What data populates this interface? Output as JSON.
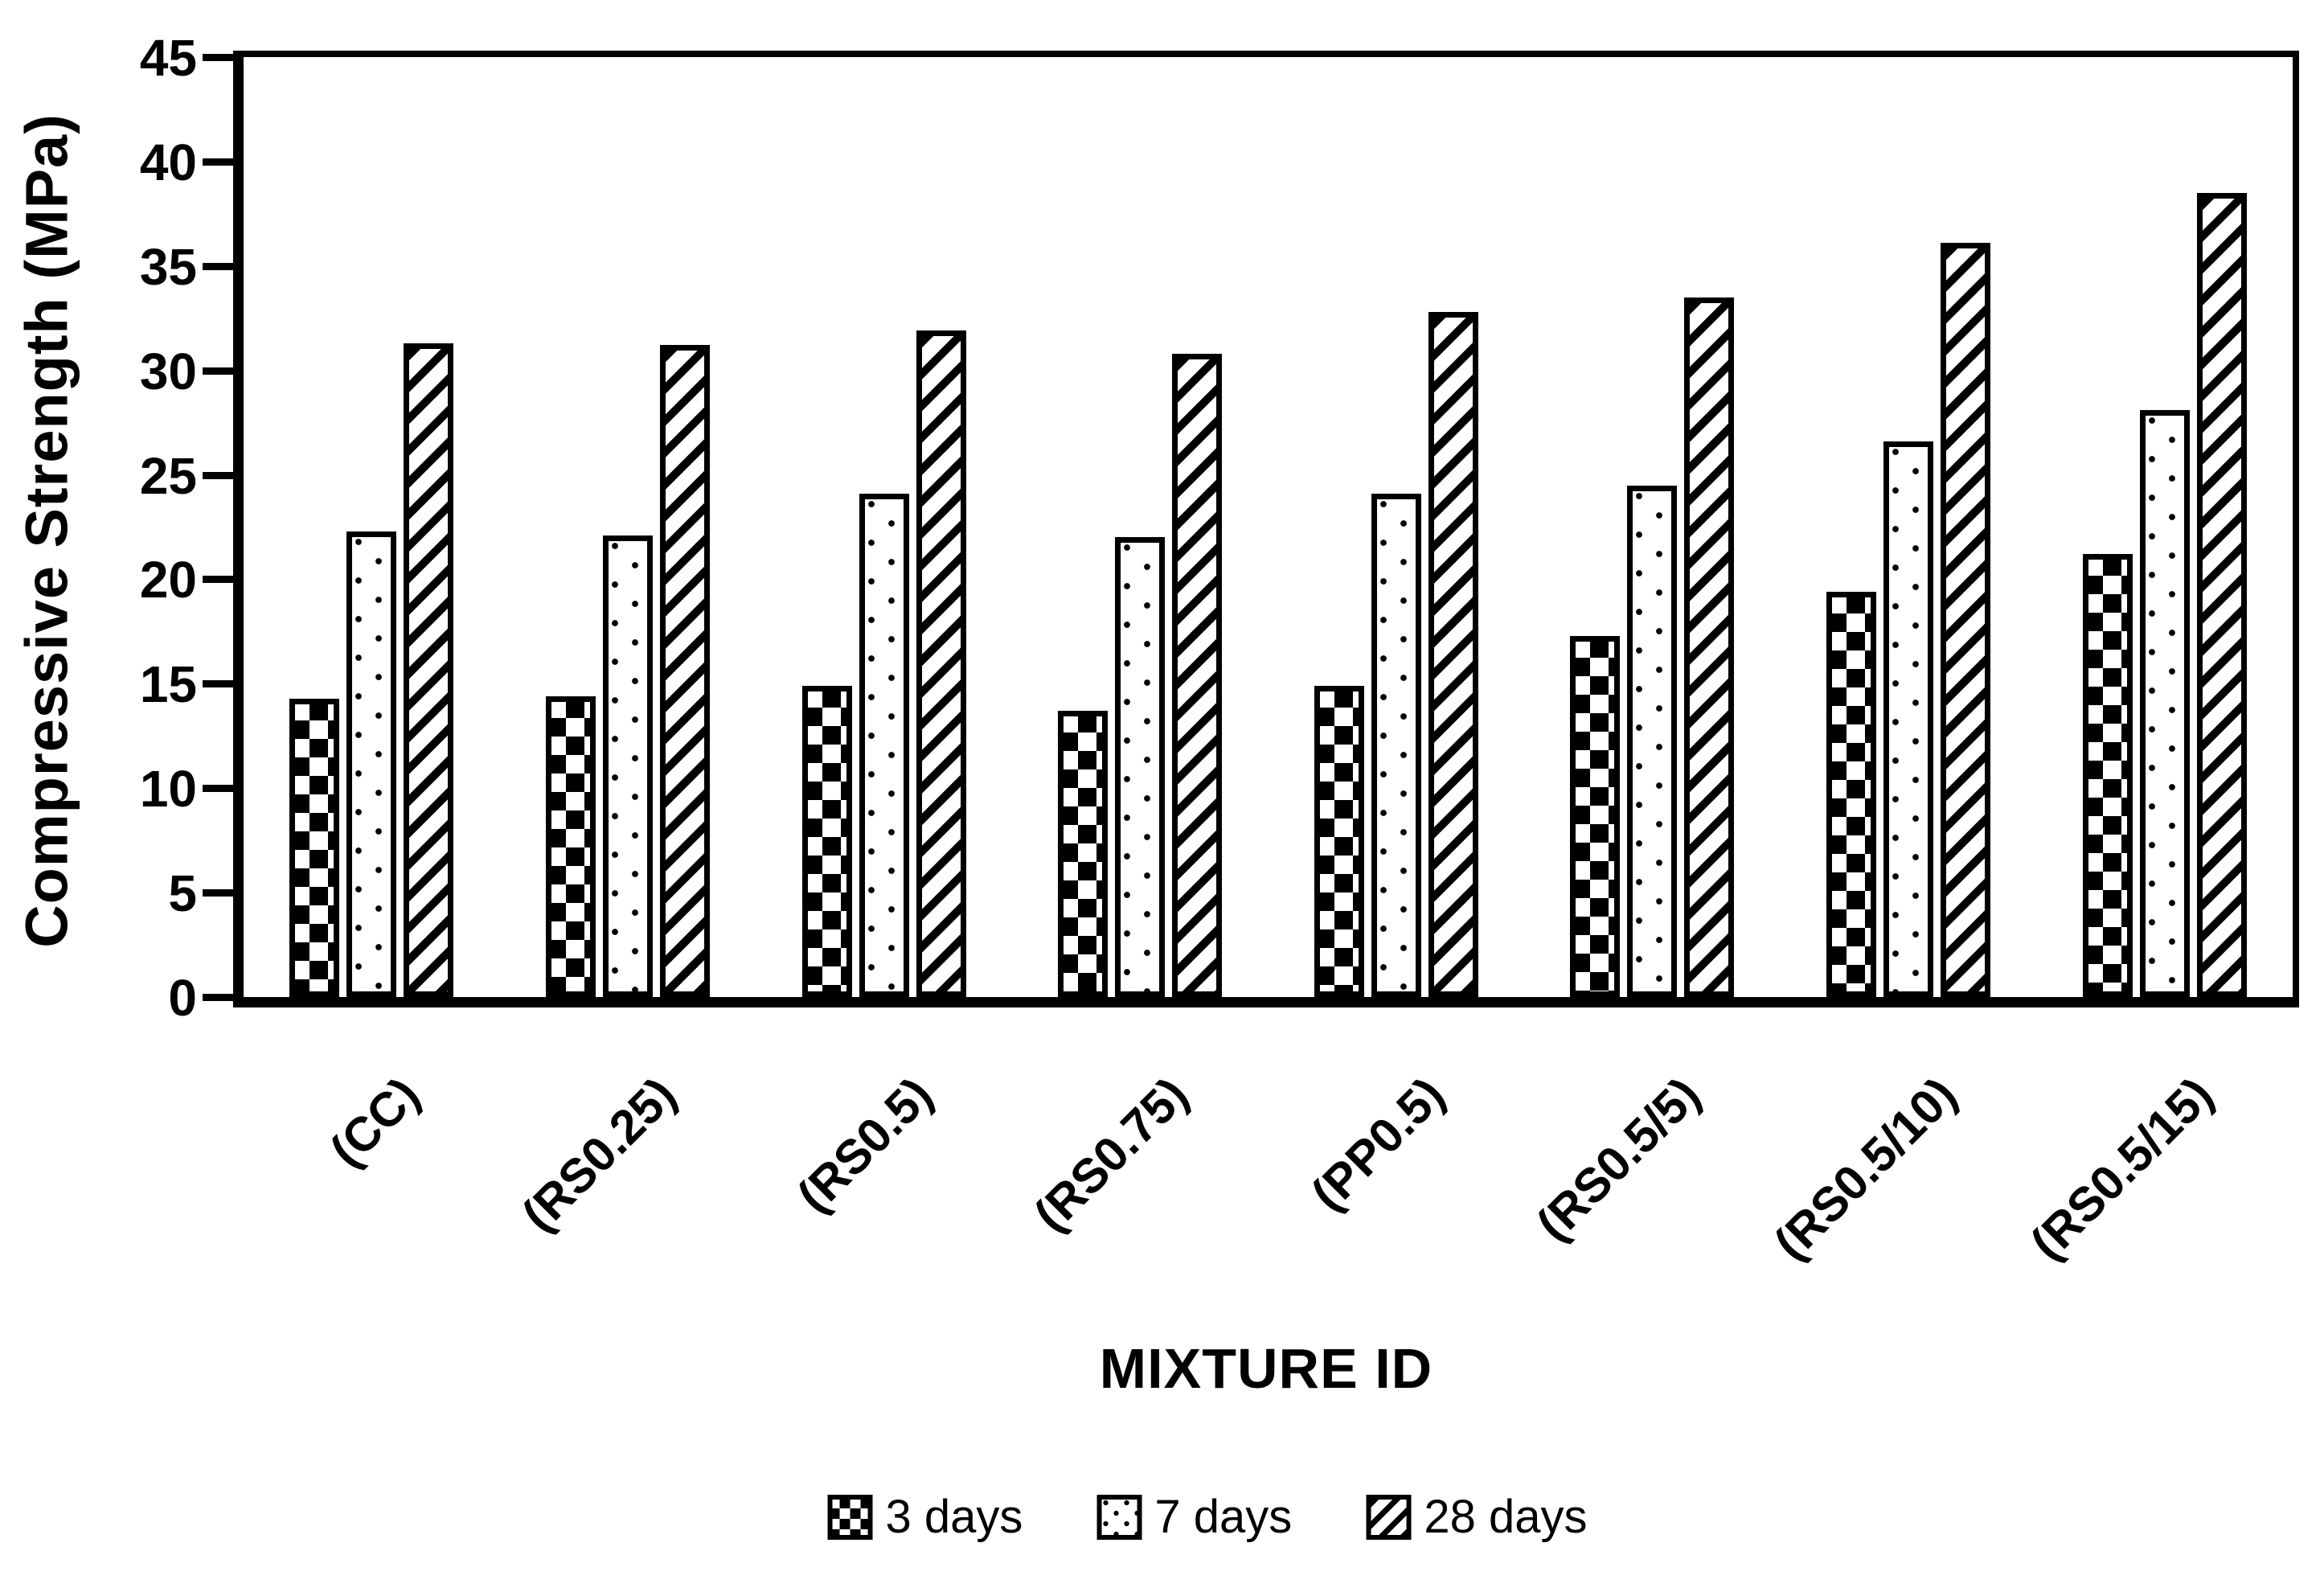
{
  "chart_data": {
    "type": "bar",
    "title": "",
    "xlabel": "MIXTURE ID",
    "ylabel": "Compressive Strength (MPa)",
    "ylim": [
      0,
      45
    ],
    "ytick_step": 5,
    "grid": false,
    "legend_position": "bottom",
    "categories": [
      "(CC)",
      "(RS0.25)",
      "(RS0.5)",
      "(RS0.75)",
      "(PP0.5)",
      "(RS0.5/5)",
      "(RS0.5/10)",
      "(RS0.5/15)"
    ],
    "series": [
      {
        "name": "3 days",
        "pattern": "checker",
        "values": [
          14.3,
          14.4,
          14.9,
          13.7,
          14.9,
          17.3,
          19.4,
          21.2
        ]
      },
      {
        "name": "7 days",
        "pattern": "dots",
        "values": [
          22.3,
          22.1,
          24.1,
          22.0,
          24.1,
          24.5,
          26.6,
          28.1
        ]
      },
      {
        "name": "28 days",
        "pattern": "stripes",
        "values": [
          31.3,
          31.2,
          31.9,
          30.8,
          32.8,
          33.5,
          36.1,
          38.5
        ]
      }
    ]
  },
  "y_axis": {
    "title": "Compressive Strength (MPa)",
    "tick_labels": [
      "45",
      "40",
      "35",
      "30",
      "25",
      "20",
      "15",
      "10",
      "5",
      "0"
    ]
  },
  "x_axis": {
    "title": "MIXTURE ID"
  },
  "legend": {
    "items": [
      {
        "label": "3 days",
        "pattern": "checker"
      },
      {
        "label": "7 days",
        "pattern": "dots"
      },
      {
        "label": "28 days",
        "pattern": "stripes"
      }
    ]
  },
  "colors": {
    "foreground": "#000000",
    "background": "#ffffff"
  }
}
